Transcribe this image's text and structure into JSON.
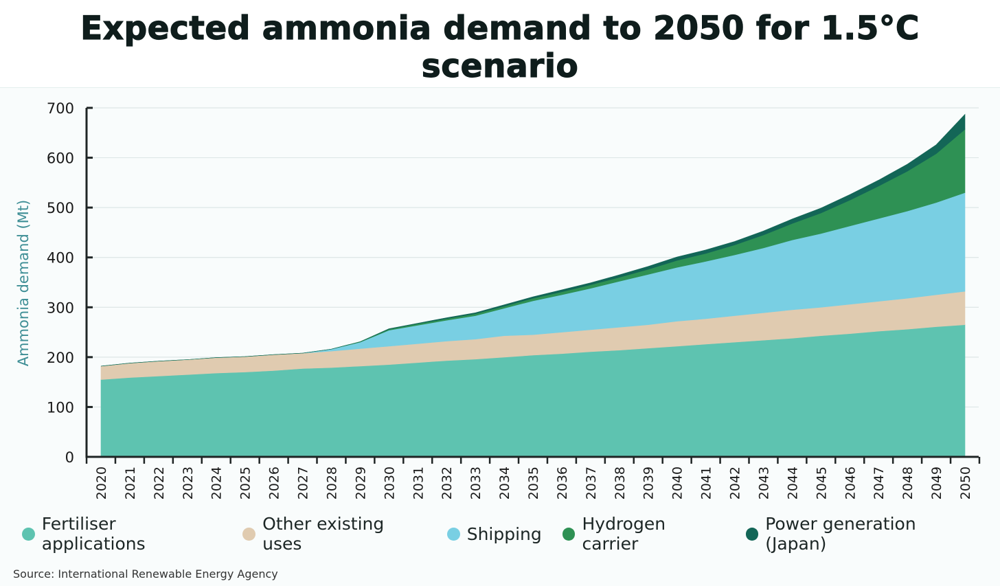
{
  "title": "Expected ammonia demand to 2050 for 1.5°C scenario",
  "source": "Source: International Renewable Energy Agency",
  "chart_data": {
    "type": "area",
    "stacked": true,
    "title": "Expected ammonia demand to 2050 for 1.5°C scenario",
    "xlabel": "",
    "ylabel": "Ammonia demand (Mt)",
    "ylim": [
      0,
      700
    ],
    "yticks": [
      0,
      100,
      200,
      300,
      400,
      500,
      600,
      700
    ],
    "grid": true,
    "legend_position": "bottom",
    "x": [
      "2020",
      "2021",
      "2022",
      "2023",
      "2024",
      "2025",
      "2026",
      "2027",
      "2028",
      "2029",
      "2030",
      "2031",
      "2032",
      "2033",
      "2034",
      "2035",
      "2036",
      "2037",
      "2038",
      "2039",
      "2040",
      "2041",
      "2042",
      "2043",
      "2044",
      "2045",
      "2046",
      "2047",
      "2048",
      "2049",
      "2050"
    ],
    "series": [
      {
        "name": "Fertiliser applications",
        "color": "#5ec3b0",
        "values": [
          155,
          159,
          162,
          165,
          168,
          170,
          173,
          177,
          179,
          182,
          185,
          189,
          193,
          196,
          200,
          204,
          207,
          211,
          214,
          218,
          222,
          226,
          230,
          234,
          238,
          243,
          247,
          252,
          256,
          261,
          265
        ]
      },
      {
        "name": "Other existing uses",
        "color": "#e0cbb0",
        "values": [
          27,
          29,
          30,
          30,
          31,
          31,
          32,
          31,
          33,
          35,
          37,
          38,
          39,
          40,
          43,
          41,
          43,
          44,
          46,
          47,
          50,
          51,
          53,
          55,
          57,
          57,
          59,
          60,
          62,
          64,
          67
        ]
      },
      {
        "name": "Shipping",
        "color": "#79cfe3",
        "values": [
          0,
          0,
          0,
          0,
          0,
          0,
          0,
          0,
          4,
          13,
          32,
          37,
          42,
          47,
          55,
          68,
          75,
          83,
          92,
          101,
          108,
          115,
          122,
          130,
          140,
          148,
          157,
          166,
          175,
          185,
          198
        ]
      },
      {
        "name": "Hydrogen carrier",
        "color": "#2e9154",
        "values": [
          0,
          0,
          0,
          0,
          0,
          0,
          0,
          0,
          0,
          1,
          2,
          3,
          3,
          4,
          4,
          5,
          6,
          7,
          8,
          10,
          14,
          16,
          20,
          26,
          33,
          41,
          52,
          65,
          80,
          98,
          127
        ]
      },
      {
        "name": "Power generation (Japan)",
        "color": "#136657",
        "values": [
          0,
          0,
          0,
          0,
          0,
          0,
          0,
          0,
          0,
          0,
          1,
          1,
          2,
          2,
          3,
          3,
          4,
          4,
          5,
          6,
          7,
          7,
          7,
          8,
          9,
          10,
          11,
          12,
          14,
          18,
          30
        ]
      }
    ]
  }
}
